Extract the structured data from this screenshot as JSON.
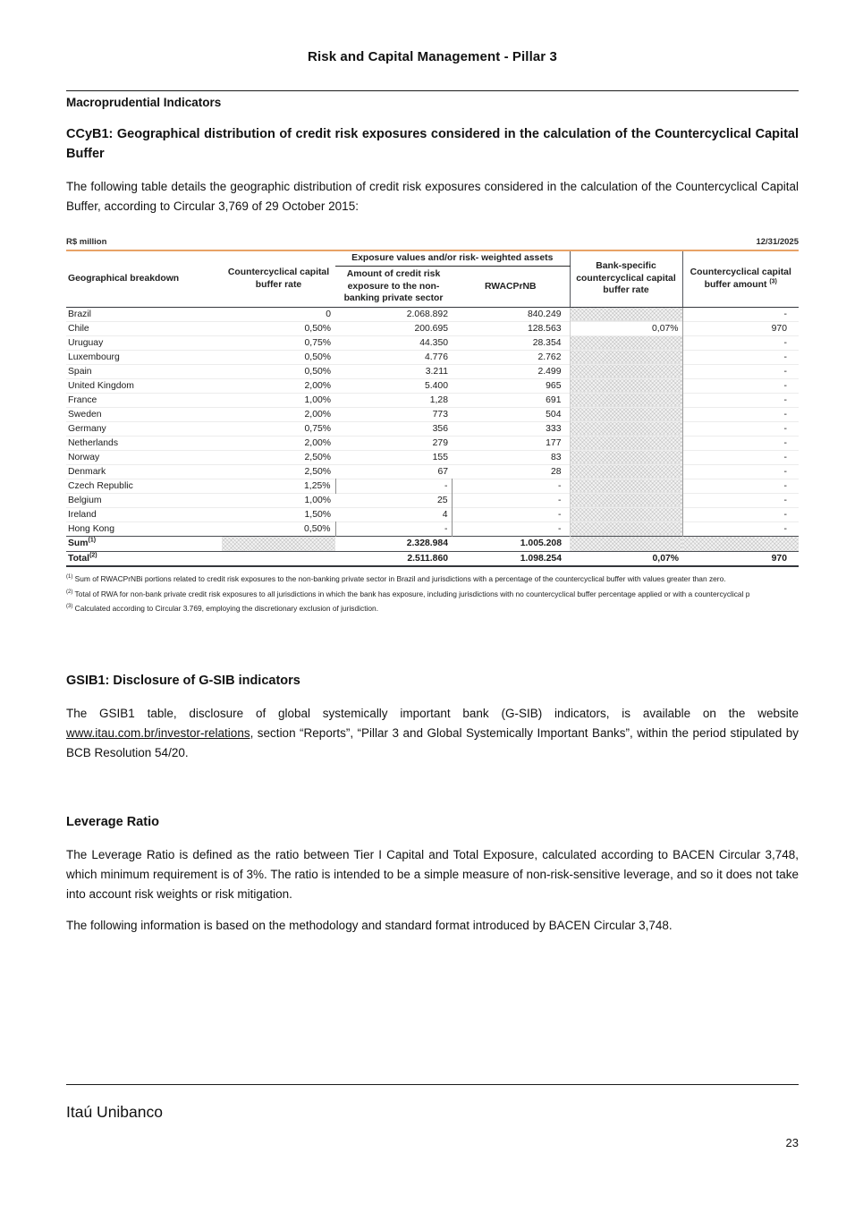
{
  "page": {
    "header_title": "Risk and Capital Management - Pillar 3",
    "section_title": "Macroprudential Indicators",
    "footer_brand": "Itaú Unibanco",
    "page_number": "23"
  },
  "colors": {
    "accent_orange": "#E8A266"
  },
  "ccyb1": {
    "heading": "CCyB1: Geographical distribution of credit risk exposures considered in the calculation of the Countercyclical Capital Buffer",
    "intro": "The following table details the geographic distribution of credit risk exposures considered in the calculation of the Countercyclical Capital Buffer, according to Circular 3,769 of 29 October 2015:"
  },
  "table": {
    "unit": "R$ million",
    "date": "12/31/2025",
    "span_header": "Exposure values and/or risk- weighted assets",
    "columns": [
      "Geographical breakdown",
      "Countercyclical capital buffer rate",
      "Amount of credit risk exposure to the non-banking private sector",
      "RWACPrNB",
      "Bank-specific countercyclical capital buffer rate",
      "Countercyclical capital buffer amount "
    ],
    "buffer_amount_sup": "(3)",
    "rows": [
      [
        "Brazil",
        "0",
        "2.068.892",
        "840.249",
        null,
        "-"
      ],
      [
        "Chile",
        "0,50%",
        "200.695",
        "128.563",
        "0,07%",
        "970"
      ],
      [
        "Uruguay",
        "0,75%",
        "44.350",
        "28.354",
        null,
        "-"
      ],
      [
        "Luxembourg",
        "0,50%",
        "4.776",
        "2.762",
        null,
        "-"
      ],
      [
        "Spain",
        "0,50%",
        "3.211",
        "2.499",
        null,
        "-"
      ],
      [
        "United Kingdom",
        "2,00%",
        "5.400",
        "965",
        null,
        "-"
      ],
      [
        "France",
        "1,00%",
        "1,28",
        "691",
        null,
        "-"
      ],
      [
        "Sweden",
        "2,00%",
        "773",
        "504",
        null,
        "-"
      ],
      [
        "Germany",
        "0,75%",
        "356",
        "333",
        null,
        "-"
      ],
      [
        "Netherlands",
        "2,00%",
        "279",
        "177",
        null,
        "-"
      ],
      [
        "Norway",
        "2,50%",
        "155",
        "83",
        null,
        "-"
      ],
      [
        "Denmark",
        "2,50%",
        "67",
        "28",
        null,
        "-"
      ],
      [
        "Czech Republic",
        "1,25%",
        "-",
        "-",
        null,
        "-"
      ],
      [
        "Belgium",
        "1,00%",
        "25",
        "-",
        null,
        "-"
      ],
      [
        "Ireland",
        "1,50%",
        "4",
        "-",
        null,
        "-"
      ],
      [
        "Hong Kong",
        "0,50%",
        "-",
        "-",
        null,
        "-"
      ]
    ],
    "sum_row": {
      "label": "Sum",
      "sup": "(1)",
      "cells": [
        null,
        "2.328.984",
        "1.005.208",
        null,
        null
      ]
    },
    "total_row": {
      "label": "Total",
      "sup": "(2)",
      "cells": [
        "",
        "2.511.860",
        "1.098.254",
        "0,07%",
        "970"
      ]
    },
    "footnotes": [
      {
        "sup": "(1)",
        "text": "Sum of RWACPrNBi portions related to credit risk exposures to the non-banking private sector in Brazil and jurisdictions with a percentage of the countercyclical buffer with values greater than zero."
      },
      {
        "sup": "(2)",
        "text": "Total of RWA for non-bank private credit risk exposures to all jurisdictions in which the bank has exposure, including jurisdictions with no countercyclical buffer percentage applied or with a countercyclical p"
      },
      {
        "sup": "(3)",
        "text": "Calculated according to Circular 3.769, employing the discretionary exclusion of jurisdiction."
      }
    ]
  },
  "gsib1": {
    "heading": "GSIB1: Disclosure of G-SIB indicators",
    "para_before_link": "The GSIB1 table, disclosure of global systemically important bank (G-SIB) indicators, is available on the website ",
    "link_text": "www.itau.com.br/investor-relations",
    "para_after_link": ", section “Reports”, “Pillar 3 and Global Systemically Important Banks”, within the period stipulated by BCB Resolution 54/20."
  },
  "leverage": {
    "heading": "Leverage Ratio",
    "para1": "The Leverage Ratio is defined as the ratio between Tier I Capital and Total Exposure, calculated according to BACEN Circular 3,748, which minimum requirement is of 3%. The ratio is intended to be a simple measure of non-risk-sensitive leverage, and so it does not take into account risk weights or risk mitigation.",
    "para2": "The following information is based on the methodology and standard format introduced by BACEN Circular 3,748."
  }
}
